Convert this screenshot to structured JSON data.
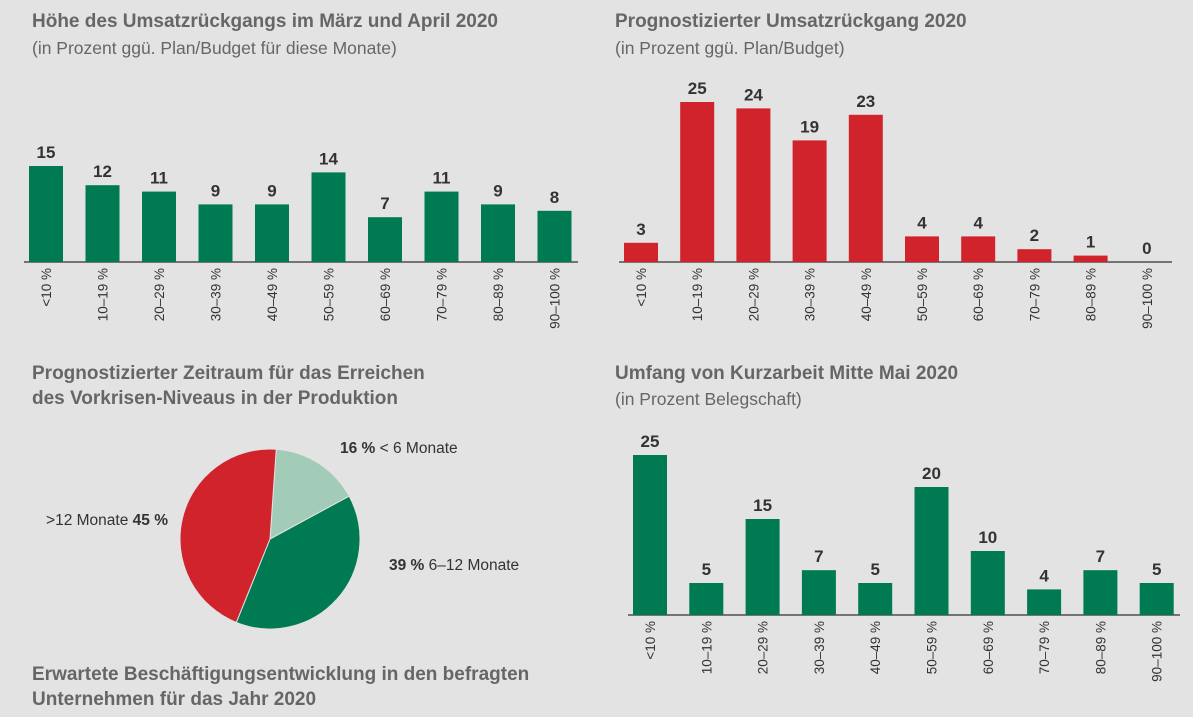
{
  "colors": {
    "background": "#e3e3e3",
    "green": "#007a52",
    "red": "#d0232c",
    "light_green": "#a2cbb8",
    "text": "#666666"
  },
  "panels": {
    "p1": {
      "title": "Höhe des Umsatzrückgangs im März und April 2020",
      "subtitle": "(in Prozent ggü. Plan/Budget für diese Monate)"
    },
    "p2": {
      "title": "Prognostizierter Umsatzrückgang 2020",
      "subtitle": "(in Prozent ggü. Plan/Budget)"
    },
    "p3": {
      "title_line1": "Prognostizierter Zeitraum für das Erreichen",
      "title_line2": "des Vorkrisen-Niveaus in der Produktion"
    },
    "p4": {
      "title": "Umfang von Kurzarbeit Mitte Mai 2020",
      "subtitle": "(in Prozent Belegschaft)"
    },
    "p5": {
      "title_line1": "Erwartete Beschäftigungsentwicklung in den befragten",
      "title_line2": "Unternehmen für das Jahr 2020"
    }
  },
  "chart_data": [
    {
      "id": "revenue_drop_mar_apr",
      "type": "bar",
      "title": "Höhe des Umsatzrückgangs im März und April 2020",
      "subtitle": "(in Prozent ggü. Plan/Budget für diese Monate)",
      "categories": [
        "<10 %",
        "10–19 %",
        "20–29 %",
        "30–39 %",
        "40–49 %",
        "50–59 %",
        "60–69 %",
        "70–79 %",
        "80–89 %",
        "90–100 %"
      ],
      "values": [
        15,
        12,
        11,
        9,
        9,
        14,
        7,
        11,
        9,
        8
      ],
      "color": "#007a52",
      "ylim": [
        0,
        25
      ]
    },
    {
      "id": "forecast_revenue_drop_2020",
      "type": "bar",
      "title": "Prognostizierter Umsatzrückgang 2020",
      "subtitle": "(in Prozent ggü. Plan/Budget)",
      "categories": [
        "<10 %",
        "10–19 %",
        "20–29 %",
        "30–39 %",
        "40–49 %",
        "50–59 %",
        "60–69 %",
        "70–79 %",
        "80–89 %",
        "90–100 %"
      ],
      "values": [
        3,
        25,
        24,
        19,
        23,
        4,
        4,
        2,
        1,
        0
      ],
      "color": "#d0232c",
      "ylim": [
        0,
        25
      ]
    },
    {
      "id": "recovery_period",
      "type": "pie",
      "title": "Prognostizierter Zeitraum für das Erreichen des Vorkrisen-Niveaus in der Produktion",
      "slices": [
        {
          "label": "< 6 Monate",
          "value": 16,
          "pct_label": "16 %",
          "color": "#a2cbb8"
        },
        {
          "label": "6–12 Monate",
          "value": 39,
          "pct_label": "39 %",
          "color": "#007a52"
        },
        {
          "label": ">12 Monate",
          "value": 45,
          "pct_label": "45 %",
          "color": "#d0232c"
        }
      ]
    },
    {
      "id": "short_time_work_may",
      "type": "bar",
      "title": "Umfang von Kurzarbeit Mitte Mai 2020",
      "subtitle": "(in Prozent Belegschaft)",
      "categories": [
        "<10 %",
        "10–19 %",
        "20–29 %",
        "30–39 %",
        "40–49 %",
        "50–59 %",
        "60–69 %",
        "70–79 %",
        "80–89 %",
        "90–100 %"
      ],
      "values": [
        25,
        5,
        15,
        7,
        5,
        20,
        10,
        4,
        7,
        5
      ],
      "color": "#007a52",
      "ylim": [
        0,
        25
      ]
    }
  ]
}
